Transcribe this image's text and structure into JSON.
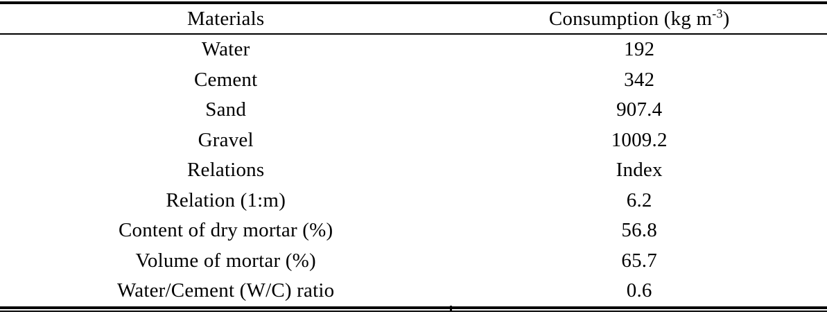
{
  "table": {
    "header": {
      "materials": "Materials",
      "consumption_prefix": "Consumption (kg m",
      "consumption_sup": "-3",
      "consumption_suffix": ")"
    },
    "rows": [
      {
        "label": "Water",
        "value": "192"
      },
      {
        "label": "Cement",
        "value": "342"
      },
      {
        "label": "Sand",
        "value": "907.4"
      },
      {
        "label": "Gravel",
        "value": "1009.2"
      },
      {
        "label": "Relations",
        "value": "Index"
      },
      {
        "label": "Relation (1:m)",
        "value": "6.2"
      },
      {
        "label": "Content of dry mortar (%)",
        "value": "56.8"
      },
      {
        "label": "Volume of mortar (%)",
        "value": "65.7"
      },
      {
        "label": "Water/Cement (W/C) ratio",
        "value": "0.6"
      }
    ]
  },
  "colors": {
    "background": "#ffffff",
    "text": "#000000",
    "rule": "#000000"
  }
}
